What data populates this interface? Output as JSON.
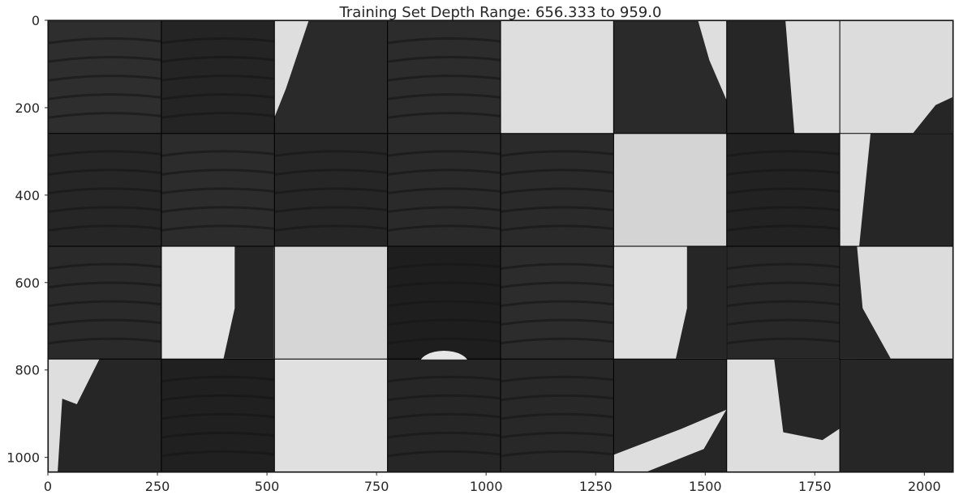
{
  "chart_data": {
    "type": "heatmap",
    "title": "Training Set Depth Range: 656.333 to 959.0",
    "xlabel": "",
    "ylabel": "",
    "xlim": [
      0,
      2066
    ],
    "ylim": [
      1034,
      0
    ],
    "x_ticks": [
      0,
      250,
      500,
      750,
      1000,
      1250,
      1500,
      1750,
      2000
    ],
    "y_ticks": [
      0,
      200,
      400,
      600,
      800,
      1000
    ],
    "grid": false,
    "colormap": "gray",
    "tile_grid": {
      "rows": 4,
      "cols": 8,
      "tile_size": 256,
      "padding": 2
    },
    "tiles": [
      {
        "row": 0,
        "col": 0,
        "pattern": "dark-bands",
        "shade": "#2e2e2e"
      },
      {
        "row": 0,
        "col": 1,
        "pattern": "dark-bands",
        "shade": "#242424"
      },
      {
        "row": 0,
        "col": 2,
        "pattern": "light-left",
        "shade": "#2a2a2a"
      },
      {
        "row": 0,
        "col": 3,
        "pattern": "dark-bands",
        "shade": "#2c2c2c"
      },
      {
        "row": 0,
        "col": 4,
        "pattern": "light",
        "shade": "#dedede"
      },
      {
        "row": 0,
        "col": 5,
        "pattern": "dark-light-topright",
        "shade": "#2a2a2a"
      },
      {
        "row": 0,
        "col": 6,
        "pattern": "dark-light-right",
        "shade": "#262626"
      },
      {
        "row": 0,
        "col": 7,
        "pattern": "light-dark-bottomright",
        "shade": "#dcdcdc"
      },
      {
        "row": 1,
        "col": 0,
        "pattern": "dark-bands",
        "shade": "#262626"
      },
      {
        "row": 1,
        "col": 1,
        "pattern": "dark-bands",
        "shade": "#2c2c2c"
      },
      {
        "row": 1,
        "col": 2,
        "pattern": "dark-bands",
        "shade": "#262626"
      },
      {
        "row": 1,
        "col": 3,
        "pattern": "dark-bands",
        "shade": "#2a2a2a"
      },
      {
        "row": 1,
        "col": 4,
        "pattern": "dark-bands",
        "shade": "#2a2a2a"
      },
      {
        "row": 1,
        "col": 5,
        "pattern": "light",
        "shade": "#d4d4d4"
      },
      {
        "row": 1,
        "col": 6,
        "pattern": "dark-bands",
        "shade": "#222222"
      },
      {
        "row": 1,
        "col": 7,
        "pattern": "light-strip-left",
        "shade": "#262626"
      },
      {
        "row": 2,
        "col": 0,
        "pattern": "dark-bands",
        "shade": "#2a2a2a"
      },
      {
        "row": 2,
        "col": 1,
        "pattern": "light-dark-right",
        "shade": "#e4e4e4"
      },
      {
        "row": 2,
        "col": 2,
        "pattern": "light",
        "shade": "#d6d6d6"
      },
      {
        "row": 2,
        "col": 3,
        "pattern": "dark-arc",
        "shade": "#1e1e1e"
      },
      {
        "row": 2,
        "col": 4,
        "pattern": "dark-bands",
        "shade": "#2c2c2c"
      },
      {
        "row": 2,
        "col": 5,
        "pattern": "light-dark-right",
        "shade": "#e0e0e0"
      },
      {
        "row": 2,
        "col": 6,
        "pattern": "dark-bands",
        "shade": "#282828"
      },
      {
        "row": 2,
        "col": 7,
        "pattern": "light-dark-left",
        "shade": "#dcdcdc"
      },
      {
        "row": 3,
        "col": 0,
        "pattern": "dark-light-topleft",
        "shade": "#262626"
      },
      {
        "row": 3,
        "col": 1,
        "pattern": "dark-bands",
        "shade": "#202020"
      },
      {
        "row": 3,
        "col": 2,
        "pattern": "light",
        "shade": "#e0e0e0"
      },
      {
        "row": 3,
        "col": 3,
        "pattern": "dark-bands",
        "shade": "#262626"
      },
      {
        "row": 3,
        "col": 4,
        "pattern": "dark-bands",
        "shade": "#282828"
      },
      {
        "row": 3,
        "col": 5,
        "pattern": "dark-light-bottom",
        "shade": "#262626"
      },
      {
        "row": 3,
        "col": 6,
        "pattern": "light-dark-top",
        "shade": "#262626"
      },
      {
        "row": 3,
        "col": 7,
        "pattern": "light-dark-left",
        "shade": "#262626"
      }
    ]
  }
}
